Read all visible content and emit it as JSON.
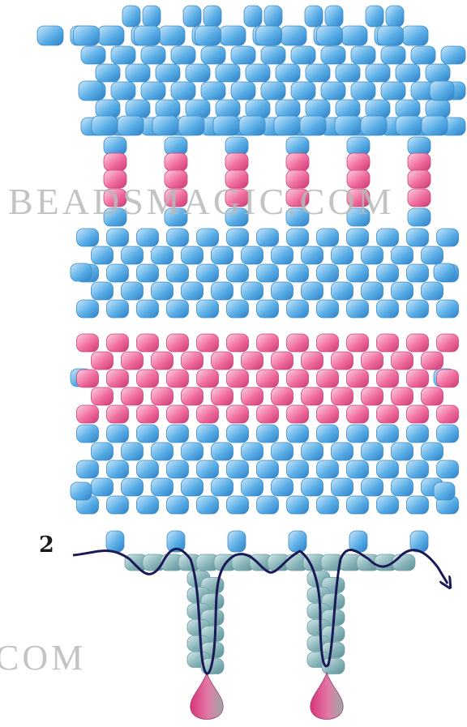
{
  "diagram": {
    "watermark_main": "BEADSMAGIC.COM",
    "watermark_bottom": "COM",
    "step_label": "2",
    "colors": {
      "blue_bead": "#5aaee6",
      "pink_bead": "#f06c9e",
      "teal_bead": "#86b4b9",
      "thread": "#1c1957",
      "drop_top": "#d9347a",
      "drop_bottom": "#9aa9a8"
    },
    "bead_icons": [
      "blue-seed-bead",
      "pink-seed-bead",
      "teal-seed-bead",
      "pink-drop-bead"
    ],
    "dangles": 2,
    "motifs": 6
  }
}
